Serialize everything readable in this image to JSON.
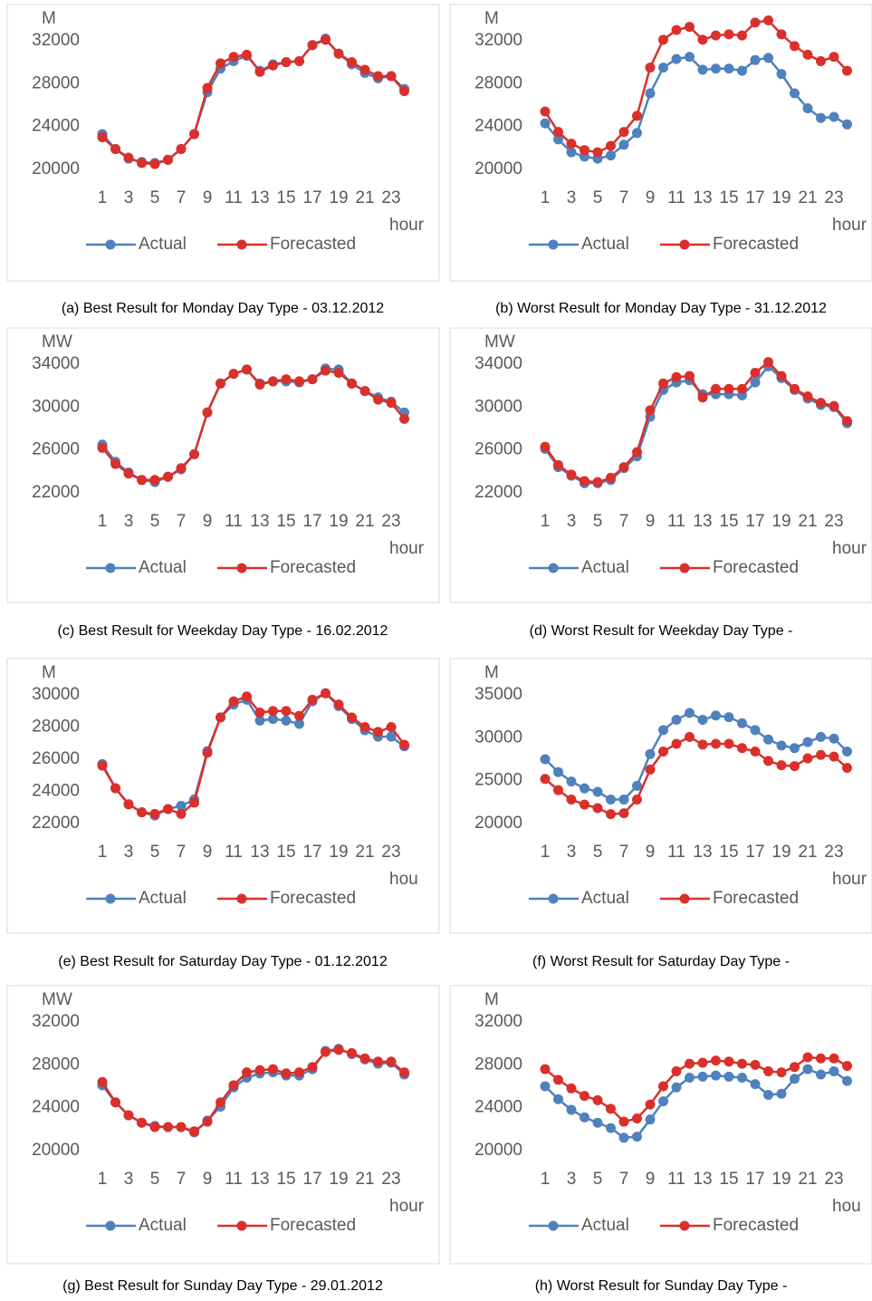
{
  "chart_data": [
    {
      "type": "line",
      "caption": "(a) Best Result for Monday Day Type - 03.12.2012",
      "y_label": "M",
      "x_label": "hour",
      "categories": [
        1,
        null,
        3,
        null,
        5,
        null,
        7,
        null,
        9,
        null,
        11,
        null,
        13,
        null,
        15,
        null,
        17,
        null,
        19,
        null,
        21,
        null,
        23,
        null
      ],
      "series": [
        {
          "name": "Actual",
          "color": "#4f81bd",
          "values": [
            23300,
            21900,
            21000,
            20700,
            20600,
            20900,
            21900,
            23300,
            27200,
            29400,
            30100,
            30600,
            29200,
            29800,
            30000,
            30100,
            31600,
            32200,
            30800,
            29800,
            29000,
            28500,
            28700,
            27500
          ]
        },
        {
          "name": "Forecasted",
          "color": "#d9302c",
          "values": [
            23000,
            21900,
            21100,
            20600,
            20500,
            20900,
            21900,
            23300,
            27600,
            29900,
            30500,
            30700,
            29100,
            29700,
            30000,
            30100,
            31600,
            32100,
            30800,
            30000,
            29300,
            28700,
            28700,
            27300
          ]
        }
      ],
      "ylim": [
        20000,
        32000
      ],
      "yticks": [
        20000,
        24000,
        28000,
        32000
      ]
    },
    {
      "type": "line",
      "caption": "(b) Worst Result for Monday Day Type - 31.12.2012",
      "y_label": "M",
      "x_label": "hour",
      "categories": [
        1,
        null,
        3,
        null,
        5,
        null,
        7,
        null,
        9,
        null,
        11,
        null,
        13,
        null,
        15,
        null,
        17,
        null,
        19,
        null,
        21,
        null,
        23,
        null
      ],
      "series": [
        {
          "name": "Actual",
          "color": "#4f81bd",
          "values": [
            24300,
            22800,
            21600,
            21200,
            21000,
            21300,
            22300,
            23400,
            27100,
            29500,
            30300,
            30500,
            29300,
            29400,
            29400,
            29200,
            30200,
            30400,
            28900,
            27100,
            25700,
            24800,
            24900,
            24200
          ]
        },
        {
          "name": "Forecasted",
          "color": "#d9302c",
          "values": [
            25400,
            23500,
            22400,
            21800,
            21600,
            22200,
            23500,
            25000,
            29500,
            32100,
            33000,
            33300,
            32100,
            32500,
            32600,
            32500,
            33700,
            33900,
            32600,
            31500,
            30700,
            30100,
            30500,
            29200
          ]
        }
      ],
      "ylim": [
        20000,
        32000
      ],
      "yticks": [
        20000,
        24000,
        28000,
        32000
      ]
    },
    {
      "type": "line",
      "caption": "(c) Best Result for Weekday Day Type - 16.02.2012",
      "y_label": "MW",
      "x_label": "hour",
      "categories": [
        1,
        null,
        3,
        null,
        5,
        null,
        7,
        null,
        9,
        null,
        11,
        null,
        13,
        null,
        15,
        null,
        17,
        null,
        19,
        null,
        21,
        null,
        23,
        null
      ],
      "series": [
        {
          "name": "Actual",
          "color": "#4f81bd",
          "values": [
            26500,
            24900,
            23900,
            23200,
            23000,
            23500,
            24200,
            25600,
            29500,
            32200,
            33100,
            33500,
            32200,
            32400,
            32400,
            32300,
            32600,
            33600,
            33500,
            32200,
            31500,
            30900,
            30500,
            29500
          ]
        },
        {
          "name": "Forecasted",
          "color": "#d9302c",
          "values": [
            26200,
            24700,
            23800,
            23200,
            23200,
            23500,
            24300,
            25600,
            29500,
            32200,
            33100,
            33500,
            32100,
            32400,
            32600,
            32400,
            32600,
            33400,
            33200,
            32200,
            31500,
            30700,
            30400,
            28900
          ]
        }
      ],
      "ylim": [
        22000,
        34000
      ],
      "yticks": [
        22000,
        26000,
        30000,
        34000
      ]
    },
    {
      "type": "line",
      "caption": "(d) Worst Result for Weekday Day Type -",
      "y_label": "MW",
      "x_label": "hour",
      "categories": [
        1,
        null,
        3,
        null,
        5,
        null,
        7,
        null,
        9,
        null,
        11,
        null,
        13,
        null,
        15,
        null,
        17,
        null,
        19,
        null,
        21,
        null,
        23,
        null
      ],
      "series": [
        {
          "name": "Actual",
          "color": "#4f81bd",
          "values": [
            26100,
            24400,
            23600,
            22900,
            22900,
            23200,
            24300,
            25400,
            29100,
            31600,
            32300,
            32500,
            31200,
            31200,
            31200,
            31100,
            32300,
            33800,
            32700,
            31600,
            30800,
            30200,
            30000,
            28500
          ]
        },
        {
          "name": "Forecasted",
          "color": "#d9302c",
          "values": [
            26300,
            24600,
            23700,
            23100,
            23000,
            23400,
            24400,
            25800,
            29700,
            32200,
            32800,
            32900,
            30900,
            31700,
            31700,
            31700,
            33200,
            34200,
            32900,
            31700,
            31000,
            30400,
            30100,
            28700
          ]
        }
      ],
      "ylim": [
        22000,
        34000
      ],
      "yticks": [
        22000,
        26000,
        30000,
        34000
      ]
    },
    {
      "type": "line",
      "caption": "(e) Best Result for Saturday Day Type - 01.12.2012",
      "y_label": "M",
      "x_label": "hou",
      "categories": [
        1,
        null,
        3,
        null,
        5,
        null,
        7,
        null,
        9,
        null,
        11,
        null,
        13,
        null,
        15,
        null,
        17,
        null,
        19,
        null,
        21,
        null,
        23,
        null
      ],
      "series": [
        {
          "name": "Actual",
          "color": "#4f81bd",
          "values": [
            25700,
            24200,
            23200,
            22700,
            22500,
            22900,
            23100,
            23500,
            26500,
            28600,
            29400,
            29700,
            28400,
            28500,
            28400,
            28200,
            29600,
            30100,
            29300,
            28500,
            27800,
            27400,
            27400,
            26800
          ]
        },
        {
          "name": "Forecasted",
          "color": "#d9302c",
          "values": [
            25600,
            24200,
            23200,
            22700,
            22600,
            22900,
            22600,
            23300,
            26400,
            28600,
            29600,
            29900,
            28900,
            29000,
            29000,
            28700,
            29700,
            30100,
            29400,
            28600,
            28000,
            27700,
            28000,
            26900
          ]
        }
      ],
      "ylim": [
        22000,
        30000
      ],
      "yticks": [
        22000,
        24000,
        26000,
        28000,
        30000
      ]
    },
    {
      "type": "line",
      "caption": "(f) Worst Result for Saturday Day Type -",
      "y_label": "M",
      "x_label": "hour",
      "categories": [
        1,
        null,
        3,
        null,
        5,
        null,
        7,
        null,
        9,
        null,
        11,
        null,
        13,
        null,
        15,
        null,
        17,
        null,
        19,
        null,
        21,
        null,
        23,
        null
      ],
      "series": [
        {
          "name": "Actual",
          "color": "#4f81bd",
          "values": [
            27500,
            26000,
            24900,
            24100,
            23700,
            22800,
            22800,
            24400,
            28100,
            30900,
            32100,
            32900,
            32100,
            32600,
            32400,
            31700,
            30900,
            29800,
            29100,
            28800,
            29500,
            30100,
            29900,
            28400
          ]
        },
        {
          "name": "Forecasted",
          "color": "#d9302c",
          "values": [
            25200,
            23900,
            22800,
            22200,
            21800,
            21100,
            21200,
            22800,
            26300,
            28400,
            29300,
            30100,
            29200,
            29300,
            29300,
            28800,
            28400,
            27300,
            26800,
            26700,
            27600,
            28000,
            27800,
            26500
          ]
        }
      ],
      "ylim": [
        20000,
        35000
      ],
      "yticks": [
        20000,
        25000,
        30000,
        35000
      ]
    },
    {
      "type": "line",
      "caption": "(g) Best Result for Sunday Day Type - 29.01.2012",
      "y_label": "MW",
      "x_label": "hour",
      "categories": [
        1,
        null,
        3,
        null,
        5,
        null,
        7,
        null,
        9,
        null,
        11,
        null,
        13,
        null,
        15,
        null,
        17,
        null,
        19,
        null,
        21,
        null,
        23,
        null
      ],
      "series": [
        {
          "name": "Actual",
          "color": "#4f81bd",
          "values": [
            26100,
            24500,
            23300,
            22600,
            22300,
            22200,
            22200,
            21700,
            22800,
            24100,
            25900,
            26800,
            27200,
            27300,
            27000,
            27000,
            27600,
            29300,
            29500,
            29000,
            28500,
            28100,
            28200,
            27100
          ]
        },
        {
          "name": "Forecasted",
          "color": "#d9302c",
          "values": [
            26400,
            24500,
            23300,
            22600,
            22200,
            22200,
            22200,
            21800,
            22700,
            24500,
            26100,
            27300,
            27500,
            27600,
            27200,
            27300,
            27800,
            29200,
            29400,
            29100,
            28600,
            28300,
            28300,
            27300
          ]
        }
      ],
      "ylim": [
        20000,
        32000
      ],
      "yticks": [
        20000,
        24000,
        28000,
        32000
      ]
    },
    {
      "type": "line",
      "caption": "(h) Worst Result for Sunday Day Type -",
      "y_label": "M",
      "x_label": "hou",
      "categories": [
        1,
        null,
        3,
        null,
        5,
        null,
        7,
        null,
        9,
        null,
        11,
        null,
        13,
        null,
        15,
        null,
        17,
        null,
        19,
        null,
        21,
        null,
        23,
        null
      ],
      "series": [
        {
          "name": "Actual",
          "color": "#4f81bd",
          "values": [
            26000,
            24800,
            23800,
            23100,
            22600,
            22100,
            21200,
            21300,
            22900,
            24600,
            25900,
            26800,
            26900,
            27000,
            26900,
            26800,
            26200,
            25200,
            25300,
            26700,
            27600,
            27100,
            27400,
            26500
          ]
        },
        {
          "name": "Forecasted",
          "color": "#d9302c",
          "values": [
            27600,
            26600,
            25800,
            25100,
            24700,
            23900,
            22700,
            23000,
            24300,
            26000,
            27400,
            28100,
            28200,
            28400,
            28300,
            28100,
            28000,
            27400,
            27300,
            27800,
            28700,
            28600,
            28600,
            27900
          ]
        }
      ],
      "ylim": [
        20000,
        32000
      ],
      "yticks": [
        20000,
        24000,
        28000,
        32000
      ]
    }
  ]
}
